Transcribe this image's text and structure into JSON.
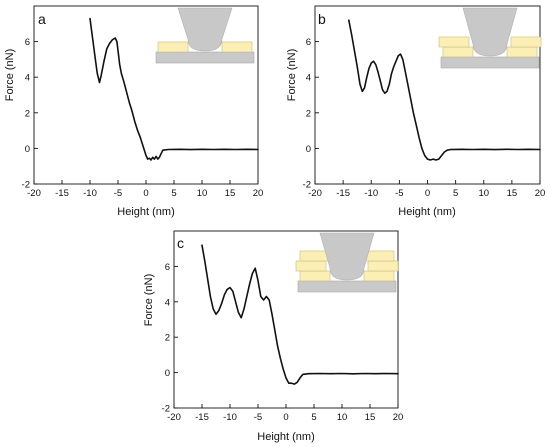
{
  "colors": {
    "line": "#111111",
    "axis": "#111111",
    "tip": "#c8c8c8",
    "tip_edge": "#b0b0b0",
    "layer_fill": "#fbefb4",
    "layer_edge": "#c8bc86",
    "substrate": "#c9c9c9",
    "substrate_edge": "#a8a8a8"
  },
  "chart_data": [
    {
      "type": "line",
      "panel_label": "a",
      "xlabel": "Height (nm)",
      "ylabel": "Force (nN)",
      "xlim": [
        -20,
        20
      ],
      "ylim": [
        -2,
        8
      ],
      "xticks": [
        -20,
        -15,
        -10,
        -5,
        0,
        5,
        10,
        15,
        20
      ],
      "yticks": [
        -2,
        0,
        2,
        4,
        6
      ],
      "inset_layers": 1,
      "series": [
        {
          "x": [
            -10,
            -9.5,
            -9,
            -8.7,
            -8.3,
            -8,
            -7.5,
            -7,
            -6.5,
            -6,
            -5.5,
            -5.2,
            -5,
            -4.7,
            -4.4,
            -4,
            -3.5,
            -3,
            -2.5,
            -2,
            -1.5,
            -1,
            -0.5,
            0,
            0.3,
            0.6,
            0.9,
            1.2,
            1.5,
            1.8,
            2.1,
            2.4,
            2.7,
            3,
            4,
            6,
            8,
            10,
            12,
            14,
            16,
            18,
            20
          ],
          "y": [
            7.3,
            6.1,
            4.9,
            4.2,
            3.7,
            4.1,
            4.9,
            5.6,
            5.9,
            6.1,
            6.2,
            6.0,
            5.5,
            4.7,
            4.2,
            3.8,
            3.2,
            2.6,
            2.1,
            1.5,
            1.0,
            0.6,
            0.1,
            -0.4,
            -0.6,
            -0.55,
            -0.65,
            -0.5,
            -0.6,
            -0.45,
            -0.6,
            -0.5,
            -0.3,
            -0.1,
            -0.06,
            -0.05,
            -0.07,
            -0.05,
            -0.06,
            -0.05,
            -0.06,
            -0.05,
            -0.06
          ]
        }
      ]
    },
    {
      "type": "line",
      "panel_label": "b",
      "xlabel": "Height (nm)",
      "ylabel": "Force (nN)",
      "xlim": [
        -20,
        20
      ],
      "ylim": [
        -2,
        8
      ],
      "xticks": [
        -20,
        -15,
        -10,
        -5,
        0,
        5,
        10,
        15,
        20
      ],
      "yticks": [
        -2,
        0,
        2,
        4,
        6
      ],
      "inset_layers": 2,
      "series": [
        {
          "x": [
            -14,
            -13.5,
            -13,
            -12.5,
            -12,
            -11.6,
            -11.2,
            -10.8,
            -10.4,
            -10,
            -9.6,
            -9.2,
            -8.8,
            -8.4,
            -8,
            -7.6,
            -7.2,
            -6.8,
            -6.4,
            -6,
            -5.6,
            -5.2,
            -4.8,
            -4.4,
            -4,
            -3.5,
            -3,
            -2.5,
            -2,
            -1.5,
            -1,
            -0.5,
            0,
            0.5,
            1,
            1.5,
            2,
            2.5,
            3,
            3.5,
            4,
            6,
            8,
            10,
            12,
            14,
            16,
            18,
            20
          ],
          "y": [
            7.2,
            6.4,
            5.5,
            4.6,
            3.6,
            3.2,
            3.4,
            4.0,
            4.5,
            4.8,
            4.9,
            4.7,
            4.3,
            3.8,
            3.3,
            3.1,
            3.2,
            3.6,
            4.2,
            4.6,
            4.9,
            5.2,
            5.3,
            5.0,
            4.4,
            3.6,
            2.8,
            2.0,
            1.3,
            0.6,
            0.0,
            -0.4,
            -0.6,
            -0.65,
            -0.6,
            -0.65,
            -0.6,
            -0.4,
            -0.2,
            -0.1,
            -0.07,
            -0.05,
            -0.06,
            -0.05,
            -0.07,
            -0.05,
            -0.06,
            -0.05,
            -0.06
          ]
        }
      ]
    },
    {
      "type": "line",
      "panel_label": "c",
      "xlabel": "Height (nm)",
      "ylabel": "Force (nN)",
      "xlim": [
        -20,
        20
      ],
      "ylim": [
        -2,
        8
      ],
      "xticks": [
        -20,
        -15,
        -10,
        -5,
        0,
        5,
        10,
        15,
        20
      ],
      "yticks": [
        -2,
        0,
        2,
        4,
        6
      ],
      "inset_layers": 3,
      "series": [
        {
          "x": [
            -15,
            -14.5,
            -14,
            -13.5,
            -13,
            -12.5,
            -12,
            -11.5,
            -11,
            -10.5,
            -10,
            -9.5,
            -9,
            -8.5,
            -8,
            -7.5,
            -7,
            -6.5,
            -6,
            -5.5,
            -5,
            -4.5,
            -4,
            -3.5,
            -3,
            -2.5,
            -2,
            -1.5,
            -1,
            -0.5,
            0,
            0.5,
            1,
            1.5,
            2,
            2.5,
            3,
            4,
            6,
            8,
            10,
            12,
            14,
            16,
            18,
            20
          ],
          "y": [
            7.2,
            6.3,
            5.3,
            4.3,
            3.6,
            3.3,
            3.5,
            3.9,
            4.4,
            4.7,
            4.8,
            4.6,
            4.0,
            3.4,
            3.1,
            3.6,
            4.3,
            5.0,
            5.6,
            5.9,
            5.2,
            4.3,
            4.1,
            4.3,
            4.1,
            3.3,
            2.4,
            1.5,
            0.8,
            0.2,
            -0.3,
            -0.6,
            -0.6,
            -0.65,
            -0.55,
            -0.3,
            -0.1,
            -0.06,
            -0.05,
            -0.06,
            -0.05,
            -0.07,
            -0.05,
            -0.06,
            -0.05,
            -0.06
          ]
        }
      ]
    }
  ]
}
